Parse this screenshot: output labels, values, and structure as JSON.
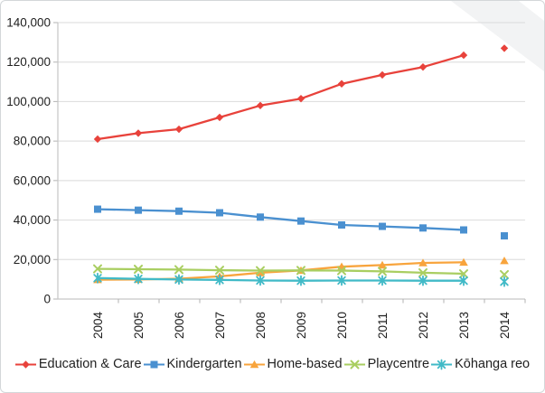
{
  "panel": {
    "background": "#ffffff",
    "border_color": "#d3d7d9",
    "watermark_color": "#f2f3f4",
    "gridline_color": "#e0e0e0",
    "axis_color": "#c6c6c6",
    "tick_color": "#b3b3b3",
    "label_color": "#1f1f1f"
  },
  "chart_data": {
    "type": "line",
    "title": "",
    "xlabel": "",
    "ylabel": "",
    "x": [
      "2004",
      "2005",
      "2006",
      "2007",
      "2008",
      "2009",
      "2010",
      "2011",
      "2012",
      "2013",
      "2014"
    ],
    "y_ticks": [
      "0",
      "20,000",
      "40,000",
      "60,000",
      "80,000",
      "100,000",
      "120,000",
      "140,000"
    ],
    "ylim": [
      0,
      140000
    ],
    "y_tick_step": 20000,
    "grid": true,
    "legend_position": "bottom",
    "note": "2014 data points are plotted as isolated markers, not connected by a line to 2013",
    "series": [
      {
        "name": "Education & Care",
        "color": "#e8423b",
        "marker": "diamond",
        "values": [
          81000,
          84000,
          86000,
          92000,
          98000,
          101500,
          109000,
          113500,
          117500,
          123500,
          127000
        ]
      },
      {
        "name": "Kindergarten",
        "color": "#4a90d0",
        "marker": "square",
        "values": [
          45500,
          45000,
          44500,
          43700,
          41500,
          39500,
          37500,
          36800,
          36000,
          35000,
          32000
        ]
      },
      {
        "name": "Home-based",
        "color": "#f8a43c",
        "marker": "triangle",
        "values": [
          9800,
          9900,
          10300,
          11500,
          13300,
          14500,
          16400,
          17200,
          18300,
          18600,
          19400
        ]
      },
      {
        "name": "Playcentre",
        "color": "#a9ce61",
        "marker": "x",
        "values": [
          15300,
          15100,
          14900,
          14600,
          14400,
          14500,
          14400,
          14000,
          13300,
          12800,
          12400
        ]
      },
      {
        "name": "Kōhanga reo",
        "color": "#41bac7",
        "marker": "asterisk",
        "values": [
          10600,
          10200,
          9900,
          9700,
          9400,
          9300,
          9400,
          9400,
          9300,
          9300,
          8800
        ]
      }
    ]
  }
}
